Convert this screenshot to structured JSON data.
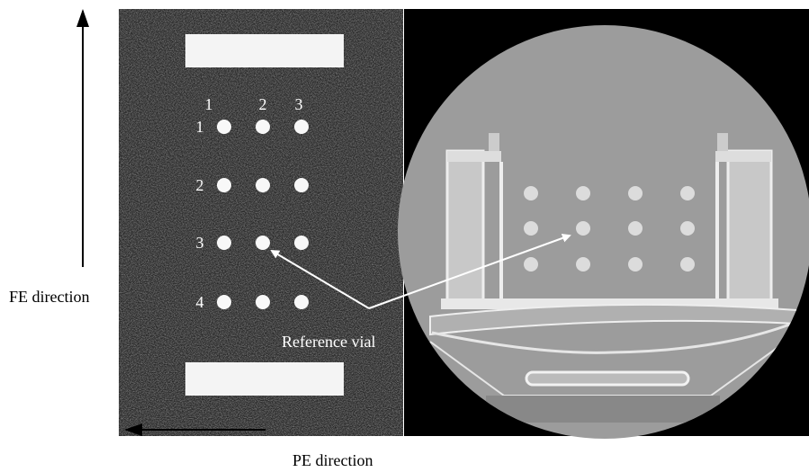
{
  "labels": {
    "fe_direction": "FE direction",
    "pe_direction": "PE direction",
    "reference_vial": "Reference vial"
  },
  "left_image": {
    "column_labels": [
      "1",
      "2",
      "3"
    ],
    "row_labels": [
      "1",
      "2",
      "3",
      "4"
    ]
  }
}
